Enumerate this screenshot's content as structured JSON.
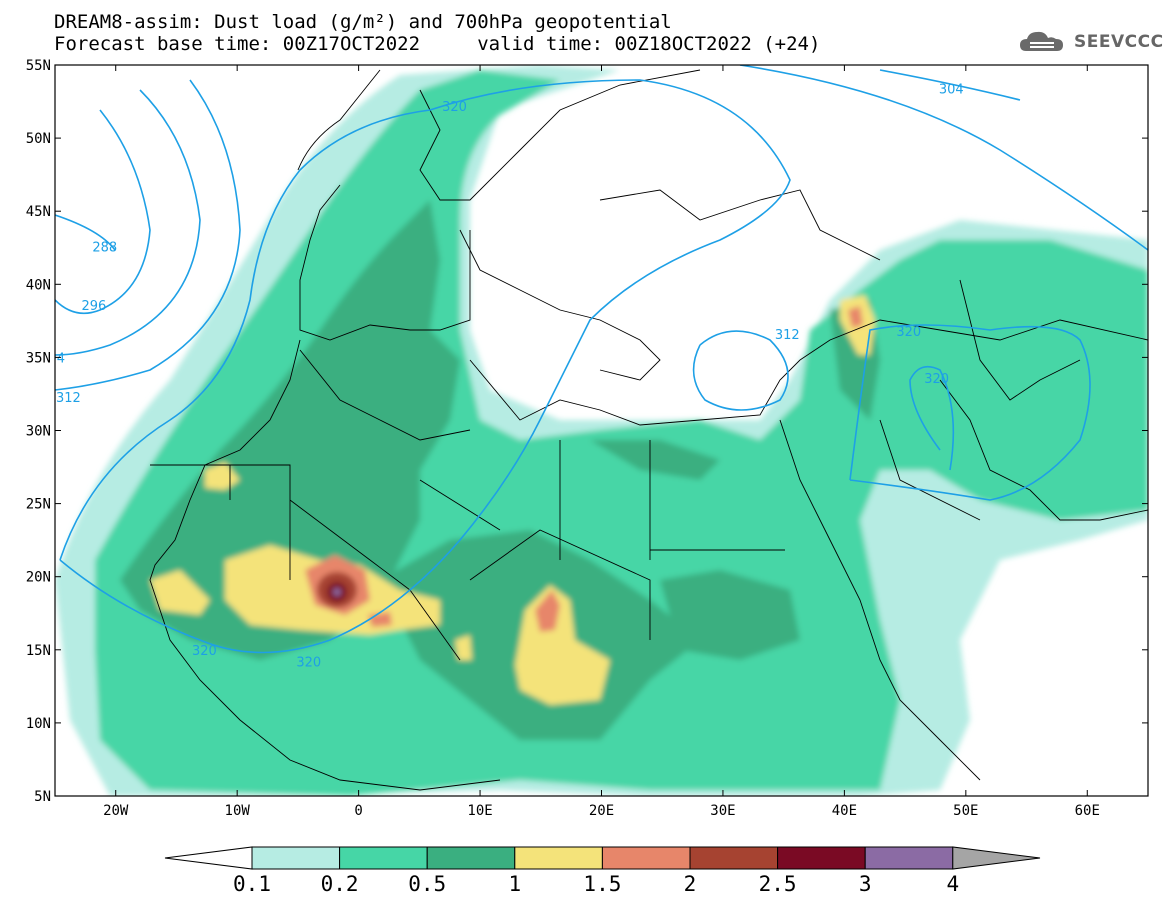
{
  "title": {
    "line1": "DREAM8-assim: Dust load (g/m²) and 700hPa geopotential",
    "line2": "Forecast base time: 00Z17OCT2022     valid time: 00Z18OCT2022 (+24)"
  },
  "logo": {
    "text": "SEEVCCC",
    "icon": "cloud-logo-icon"
  },
  "map": {
    "lon_range": [
      -25,
      65
    ],
    "lat_range": [
      5,
      55
    ],
    "lon_ticks": [
      {
        "lon": -20,
        "label": "20W"
      },
      {
        "lon": -10,
        "label": "10W"
      },
      {
        "lon": 0,
        "label": "0"
      },
      {
        "lon": 10,
        "label": "10E"
      },
      {
        "lon": 20,
        "label": "20E"
      },
      {
        "lon": 30,
        "label": "30E"
      },
      {
        "lon": 40,
        "label": "40E"
      },
      {
        "lon": 50,
        "label": "50E"
      },
      {
        "lon": 60,
        "label": "60E"
      }
    ],
    "lat_ticks": [
      {
        "lat": 55,
        "label": "55N"
      },
      {
        "lat": 50,
        "label": "50N"
      },
      {
        "lat": 45,
        "label": "45N"
      },
      {
        "lat": 40,
        "label": "40N"
      },
      {
        "lat": 35,
        "label": "35N"
      },
      {
        "lat": 30,
        "label": "30N"
      },
      {
        "lat": 25,
        "label": "25N"
      },
      {
        "lat": 20,
        "label": "20N"
      },
      {
        "lat": 15,
        "label": "15N"
      },
      {
        "lat": 10,
        "label": "10N"
      },
      {
        "lat": 5,
        "label": "5N"
      }
    ],
    "contour_labels": [
      {
        "text": "288",
        "lon": -20.9,
        "lat": 42.6
      },
      {
        "text": "296",
        "lon": -21.8,
        "lat": 38.6
      },
      {
        "text": "304",
        "lon": -25.2,
        "lat": 35.0
      },
      {
        "text": "312",
        "lon": -23.9,
        "lat": 32.3
      },
      {
        "text": "320",
        "lon": 7.9,
        "lat": 52.2
      },
      {
        "text": "304",
        "lon": 48.8,
        "lat": 53.4
      },
      {
        "text": "312",
        "lon": 35.3,
        "lat": 36.6
      },
      {
        "text": "320",
        "lon": 45.3,
        "lat": 36.8
      },
      {
        "text": "320",
        "lon": 47.6,
        "lat": 33.6
      },
      {
        "text": "320",
        "lon": -12.7,
        "lat": 15.0
      },
      {
        "text": "320",
        "lon": -4.1,
        "lat": 14.2
      }
    ]
  },
  "colorbar": {
    "ticks": [
      "0.1",
      "0.2",
      "0.5",
      "1",
      "1.5",
      "2",
      "2.5",
      "3",
      "4"
    ],
    "colors": [
      "#ffffff",
      "#b6ece3",
      "#46d6a6",
      "#3aaf80",
      "#f4e37a",
      "#e7866a",
      "#a64331",
      "#7a0a24",
      "#8b6ba4",
      "#a5a5a5"
    ]
  },
  "colors": {
    "contour": "#1ea0e6",
    "border": "#000000"
  }
}
